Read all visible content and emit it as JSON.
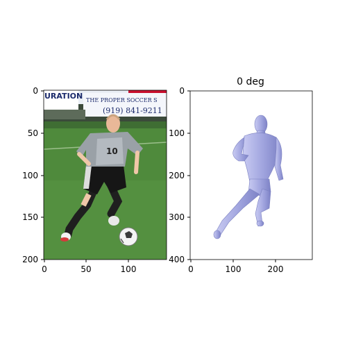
{
  "figure": {
    "left_panel": {
      "title": "",
      "image_subject": "soccer-player-photo",
      "banner": {
        "text_left": "URATION",
        "text_right": "THE PROPER SOCCER S",
        "phone": "(919) 841-9211"
      },
      "jersey_number": "10",
      "x_ticks": [
        "0",
        "50",
        "100"
      ],
      "y_ticks": [
        "0",
        "50",
        "100",
        "150",
        "200"
      ]
    },
    "right_panel": {
      "title": "0 deg",
      "image_subject": "3d-body-mesh-render",
      "mesh_color": "#a3a7e0",
      "x_ticks": [
        "0",
        "100",
        "200"
      ],
      "y_ticks": [
        "0",
        "100",
        "200",
        "300",
        "400"
      ]
    }
  }
}
